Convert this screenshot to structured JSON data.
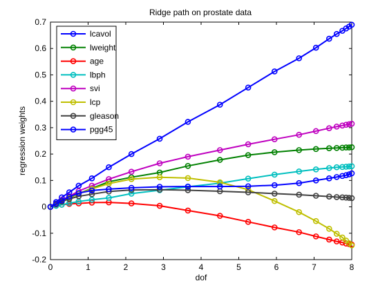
{
  "chart_data": {
    "type": "line",
    "title": "Ridge path on prostate data",
    "xlabel": "dof",
    "ylabel": "regression weights",
    "xlim": [
      0,
      8
    ],
    "ylim": [
      -0.2,
      0.7
    ],
    "xticks": [
      "0",
      "1",
      "2",
      "3",
      "4",
      "5",
      "6",
      "7",
      "8"
    ],
    "yticks": [
      "-0.2",
      "-0.1",
      "0",
      "0.1",
      "0.2",
      "0.3",
      "0.4",
      "0.5",
      "0.6",
      "0.7"
    ],
    "grid": false,
    "legend_position": "top-left",
    "marker": "open-circle",
    "x": [
      0.0,
      0.15,
      0.3,
      0.5,
      0.75,
      1.1,
      1.55,
      2.15,
      2.9,
      3.65,
      4.5,
      5.25,
      5.95,
      6.6,
      7.05,
      7.4,
      7.6,
      7.75,
      7.85,
      7.93,
      8.0
    ],
    "series": [
      {
        "name": "lcavol",
        "color": "#0000ff",
        "values": [
          0.0,
          0.018,
          0.036,
          0.055,
          0.08,
          0.108,
          0.15,
          0.2,
          0.258,
          0.322,
          0.387,
          0.452,
          0.513,
          0.563,
          0.603,
          0.637,
          0.655,
          0.667,
          0.676,
          0.683,
          0.69
        ]
      },
      {
        "name": "lweight",
        "color": "#008000",
        "values": [
          0.0,
          0.01,
          0.02,
          0.033,
          0.05,
          0.07,
          0.095,
          0.112,
          0.13,
          0.155,
          0.178,
          0.196,
          0.207,
          0.215,
          0.219,
          0.222,
          0.223,
          0.224,
          0.225,
          0.225,
          0.226
        ]
      },
      {
        "name": "age",
        "color": "#ff0000",
        "values": [
          0.0,
          0.005,
          0.008,
          0.011,
          0.013,
          0.016,
          0.017,
          0.013,
          0.004,
          -0.014,
          -0.034,
          -0.057,
          -0.078,
          -0.096,
          -0.112,
          -0.124,
          -0.131,
          -0.135,
          -0.139,
          -0.141,
          -0.143
        ]
      },
      {
        "name": "lbph",
        "color": "#00bfbf",
        "values": [
          0.0,
          0.004,
          0.008,
          0.014,
          0.02,
          0.027,
          0.034,
          0.05,
          0.063,
          0.076,
          0.09,
          0.107,
          0.122,
          0.134,
          0.142,
          0.147,
          0.15,
          0.151,
          0.152,
          0.153,
          0.154
        ]
      },
      {
        "name": "svi",
        "color": "#bf00bf",
        "values": [
          0.0,
          0.012,
          0.026,
          0.04,
          0.06,
          0.08,
          0.105,
          0.133,
          0.165,
          0.19,
          0.215,
          0.237,
          0.256,
          0.273,
          0.287,
          0.298,
          0.304,
          0.308,
          0.311,
          0.313,
          0.315
        ]
      },
      {
        "name": "lcp",
        "color": "#bfbf00",
        "values": [
          0.0,
          0.012,
          0.024,
          0.035,
          0.05,
          0.068,
          0.088,
          0.105,
          0.112,
          0.109,
          0.093,
          0.065,
          0.022,
          -0.02,
          -0.054,
          -0.083,
          -0.102,
          -0.116,
          -0.128,
          -0.138,
          -0.146
        ]
      },
      {
        "name": "gleason",
        "color": "#404040",
        "values": [
          0.0,
          0.01,
          0.02,
          0.03,
          0.04,
          0.048,
          0.058,
          0.064,
          0.065,
          0.063,
          0.059,
          0.055,
          0.05,
          0.046,
          0.042,
          0.039,
          0.037,
          0.036,
          0.035,
          0.034,
          0.033
        ]
      },
      {
        "name": "pgg45",
        "color": "#0000ff",
        "values": [
          0.0,
          0.012,
          0.024,
          0.038,
          0.052,
          0.062,
          0.067,
          0.072,
          0.076,
          0.077,
          0.077,
          0.078,
          0.082,
          0.09,
          0.1,
          0.108,
          0.113,
          0.117,
          0.12,
          0.123,
          0.127
        ]
      }
    ]
  }
}
